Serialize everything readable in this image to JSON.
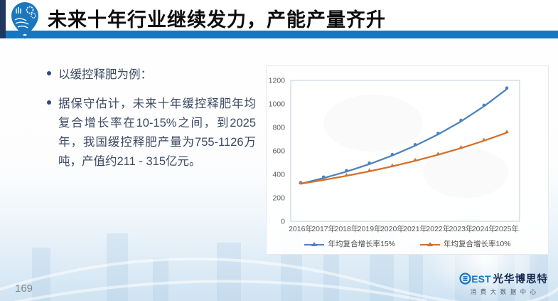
{
  "slide": {
    "title": "未来十年行业继续发力，产能产量齐升",
    "page_number": "169"
  },
  "bullets": [
    "以缓控释肥为例：",
    "据保守估计，未来十年缓控释肥年均复合增长率在10-15%之间，到2025年，我国缓控释肥产量为755-1126万吨，产值约211 - 315亿元。"
  ],
  "chart_data": {
    "type": "line",
    "x": [
      "2016年",
      "2017年",
      "2018年",
      "2019年",
      "2020年",
      "2021年",
      "2022年",
      "2023年",
      "2024年",
      "2025年"
    ],
    "series": [
      {
        "name": "年均复合增长率15%",
        "color": "#4f81bc",
        "values": [
          320,
          368,
          423,
          487,
          560,
          644,
          740,
          851,
          979,
          1126
        ]
      },
      {
        "name": "年均复合增长率10%",
        "color": "#d4702a",
        "values": [
          320,
          352,
          387,
          426,
          468,
          515,
          567,
          623,
          686,
          755
        ]
      }
    ],
    "title": "",
    "xlabel": "",
    "ylabel": "",
    "ylim": [
      0,
      1200
    ],
    "ytick_step": 200,
    "grid": false,
    "legend_position": "bottom"
  },
  "footer": {
    "brand_est": "EST",
    "brand_name": "光华博思特",
    "brand_subtitle": "消费大数据中心"
  },
  "colors": {
    "accent_bar": "#1577bf",
    "left_strip": "#21375f",
    "title_text": "#0d0d0d",
    "body_text": "#3d4a63",
    "axis_text": "#595959",
    "series_blue": "#4f81bc",
    "series_orange": "#d4702a",
    "brand_blue": "#1b75bc",
    "brand_navy": "#16294e"
  }
}
